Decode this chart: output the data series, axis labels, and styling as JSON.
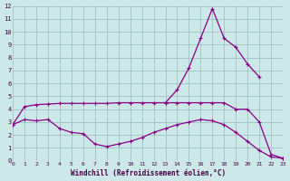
{
  "xlabel": "Windchill (Refroidissement éolien,°C)",
  "xlim": [
    0,
    23
  ],
  "ylim": [
    0,
    12
  ],
  "xticks": [
    0,
    1,
    2,
    3,
    4,
    5,
    6,
    7,
    8,
    9,
    10,
    11,
    12,
    13,
    14,
    15,
    16,
    17,
    18,
    19,
    20,
    21,
    22,
    23
  ],
  "yticks": [
    0,
    1,
    2,
    3,
    4,
    5,
    6,
    7,
    8,
    9,
    10,
    11,
    12
  ],
  "bg_color": "#cce8e8",
  "line_color": "#880088",
  "grid_color": "#99bbbb",
  "line1_x": [
    0,
    1,
    2,
    3,
    4,
    5,
    6,
    7,
    8,
    9,
    10,
    11,
    12,
    13,
    14,
    15,
    16,
    17,
    18,
    19,
    20,
    21,
    22,
    23
  ],
  "line1_y": [
    2.8,
    4.2,
    4.35,
    4.4,
    4.45,
    4.45,
    4.45,
    4.45,
    4.45,
    4.5,
    4.5,
    4.5,
    4.5,
    4.5,
    4.5,
    4.5,
    4.5,
    4.5,
    4.5,
    4.0,
    4.0,
    3.0,
    0.5,
    0.2
  ],
  "line2_x": [
    0,
    1,
    2,
    3,
    4,
    5,
    6,
    7,
    8,
    9,
    10,
    11,
    12,
    13,
    14,
    15,
    16,
    17,
    18,
    19,
    20,
    21,
    22,
    23
  ],
  "line2_y": [
    2.8,
    3.2,
    3.1,
    3.2,
    2.5,
    2.2,
    2.1,
    1.3,
    1.1,
    1.3,
    1.5,
    1.8,
    2.2,
    2.5,
    2.8,
    3.0,
    3.2,
    3.1,
    2.8,
    2.2,
    1.5,
    0.8,
    0.3,
    0.2
  ],
  "line3_x": [
    13,
    14,
    15,
    16,
    17,
    18,
    19,
    20,
    21,
    22,
    23
  ],
  "line3_y": [
    4.5,
    5.5,
    7.2,
    9.5,
    11.8,
    9.5,
    8.8,
    7.5,
    6.5,
    null,
    null
  ]
}
